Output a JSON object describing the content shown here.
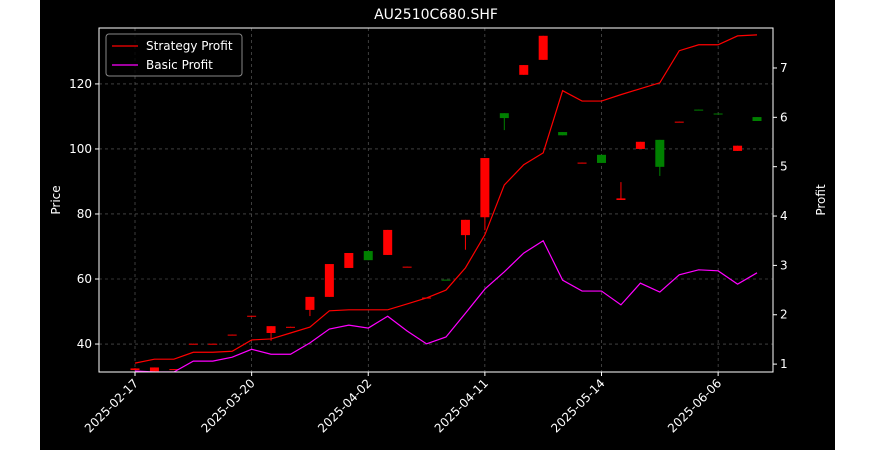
{
  "chart_data": {
    "type": "candlestick",
    "title": "AU2510C680.SHF",
    "ylabel": "Price",
    "y2label": "Profit",
    "categories": [
      "2025-02-17",
      null,
      null,
      null,
      null,
      null,
      "2025-03-20",
      null,
      null,
      null,
      null,
      null,
      "2025-04-02",
      null,
      null,
      null,
      null,
      null,
      "2025-04-11",
      null,
      null,
      null,
      null,
      null,
      "2025-05-14",
      null,
      null,
      null,
      null,
      null,
      "2025-06-06",
      null,
      null
    ],
    "open": [
      32.0,
      31.6,
      32.1,
      39.9,
      39.9,
      42.7,
      48.5,
      43.4,
      45.1,
      50.5,
      54.5,
      63.4,
      68.6,
      67.4,
      63.6,
      54.1,
      59.8,
      73.5,
      79.0,
      111.0,
      122.8,
      127.4,
      105.2,
      95.6,
      98.2,
      84.3,
      100.0,
      102.8,
      108.2,
      112.1,
      110.9,
      99.4,
      109.8
    ],
    "close": [
      32.5,
      32.8,
      32.3,
      40.1,
      40.1,
      42.9,
      48.7,
      45.5,
      45.3,
      54.5,
      64.6,
      68.0,
      65.8,
      75.1,
      63.8,
      54.3,
      59.6,
      78.2,
      97.2,
      109.5,
      125.8,
      134.8,
      104.2,
      95.8,
      95.7,
      84.8,
      102.2,
      94.5,
      108.4,
      111.9,
      110.7,
      101.0,
      108.6
    ],
    "high": [
      32.6,
      32.8,
      32.3,
      40.1,
      40.1,
      42.9,
      48.7,
      45.5,
      45.3,
      54.5,
      64.6,
      68.0,
      68.6,
      75.1,
      63.8,
      54.3,
      59.8,
      78.2,
      97.2,
      111.0,
      125.8,
      134.8,
      105.2,
      95.8,
      98.2,
      89.8,
      102.2,
      102.8,
      108.4,
      112.1,
      110.9,
      101.0,
      109.8
    ],
    "low": [
      32.0,
      31.6,
      32.1,
      39.9,
      39.9,
      42.7,
      48.5,
      41.0,
      45.1,
      48.6,
      54.5,
      63.4,
      65.8,
      67.4,
      63.6,
      54.1,
      59.6,
      69.0,
      75.0,
      105.8,
      122.8,
      127.4,
      104.2,
      95.6,
      95.7,
      84.3,
      100.0,
      91.7,
      108.2,
      111.9,
      110.7,
      99.4,
      108.6
    ],
    "up_color": "#ff0000",
    "down_color": "#008000",
    "series": [
      {
        "name": "Strategy Profit",
        "color": "#ff0000",
        "axis": "y2",
        "values": [
          1.02,
          1.1,
          1.1,
          1.24,
          1.24,
          1.26,
          1.49,
          1.51,
          1.63,
          1.75,
          2.08,
          2.1,
          2.1,
          2.1,
          2.22,
          2.34,
          2.5,
          2.95,
          3.62,
          4.63,
          5.04,
          5.28,
          6.54,
          6.33,
          6.33,
          6.46,
          6.58,
          6.7,
          7.35,
          7.47,
          7.47,
          7.65,
          7.67
        ]
      },
      {
        "name": "Basic Profit",
        "color": "#ff00ff",
        "axis": "y2",
        "values": [
          0.86,
          0.84,
          0.84,
          1.06,
          1.06,
          1.14,
          1.3,
          1.2,
          1.2,
          1.43,
          1.71,
          1.79,
          1.73,
          1.97,
          1.67,
          1.41,
          1.55,
          2.03,
          2.52,
          2.87,
          3.25,
          3.5,
          2.7,
          2.48,
          2.48,
          2.2,
          2.64,
          2.46,
          2.81,
          2.91,
          2.89,
          2.62,
          2.85
        ]
      }
    ],
    "ylim": [
      31.4,
      137.2
    ],
    "yticks": [
      40,
      60,
      80,
      100,
      120
    ],
    "y2lim": [
      0.84,
      7.81
    ],
    "y2ticks": [
      1,
      2,
      3,
      4,
      5,
      6,
      7
    ],
    "grid": true,
    "legend": "upper left"
  }
}
